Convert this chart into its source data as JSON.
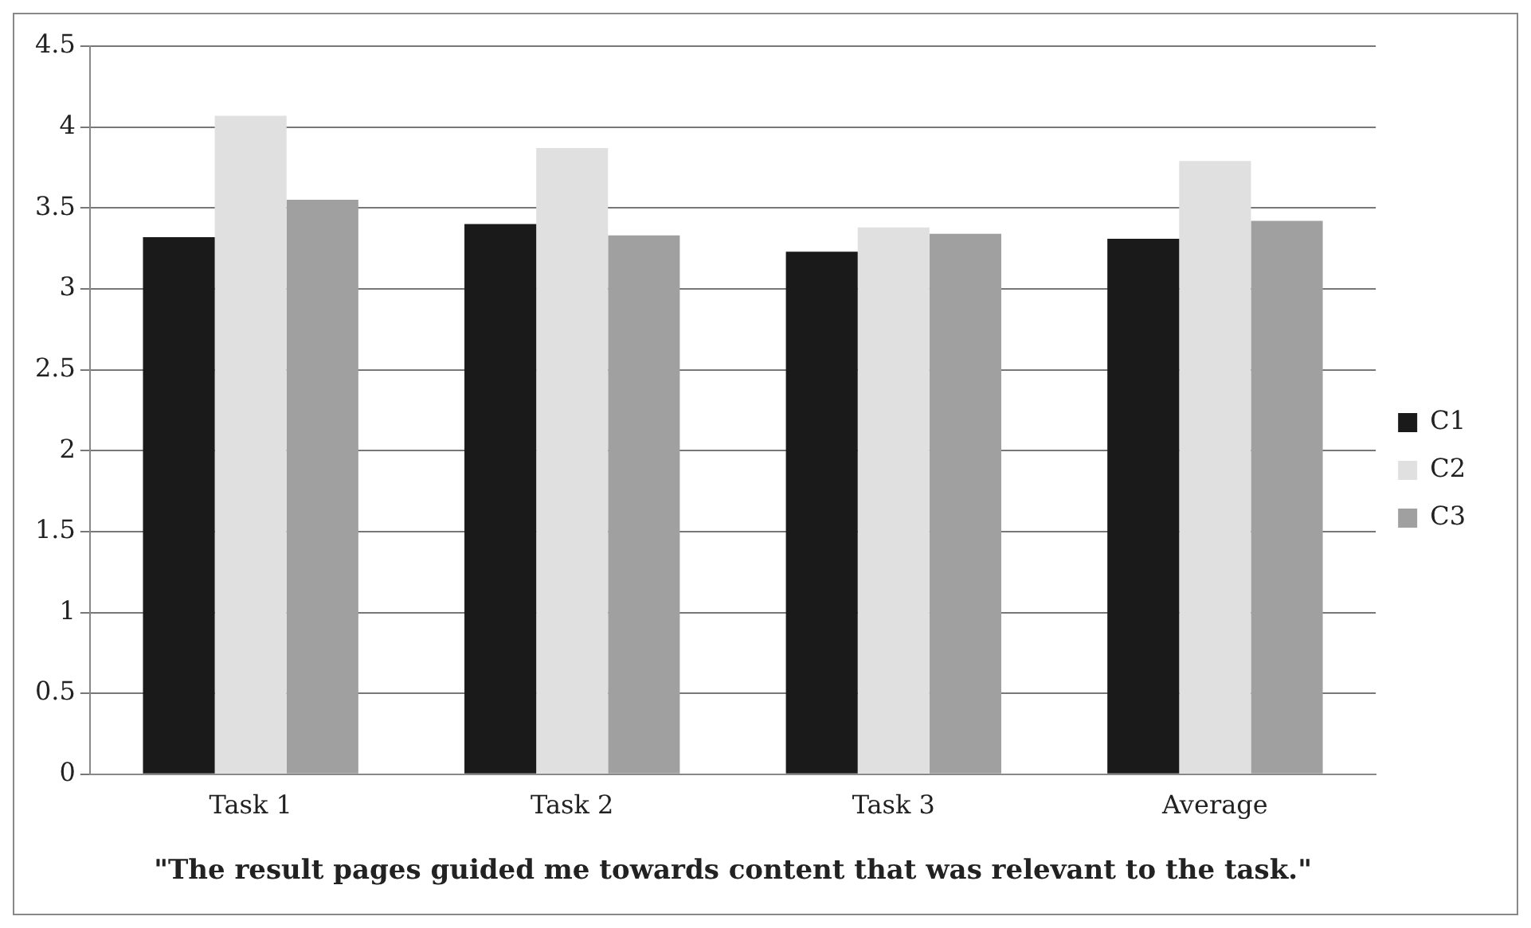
{
  "chart_data": {
    "type": "bar",
    "xlabel": "\"The result pages guided me towards content that was relevant to the task.\"",
    "categories": [
      "Task 1",
      "Task 2",
      "Task 3",
      "Average"
    ],
    "series": [
      {
        "name": "C1",
        "color": "#1a1a1a",
        "values": [
          3.32,
          3.4,
          3.23,
          3.31
        ]
      },
      {
        "name": "C2",
        "color": "#e0e0e0",
        "values": [
          4.07,
          3.87,
          3.38,
          3.79
        ]
      },
      {
        "name": "C3",
        "color": "#a0a0a0",
        "values": [
          3.55,
          3.33,
          3.34,
          3.42
        ]
      }
    ],
    "ylim": [
      0,
      4.5
    ],
    "yticks": [
      0,
      0.5,
      1,
      1.5,
      2,
      2.5,
      3,
      3.5,
      4,
      4.5
    ],
    "grid": "y",
    "legend": "right"
  }
}
